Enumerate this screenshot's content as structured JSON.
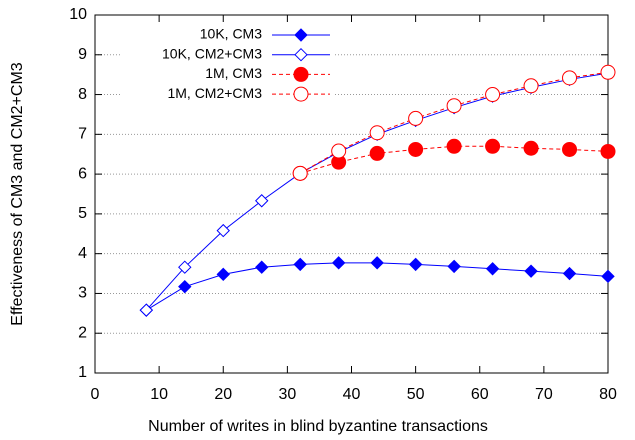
{
  "chart_data": {
    "type": "line",
    "x_label": "Number of writes in blind byzantine transactions",
    "y_label": "Effectiveness of CM3 and CM2+CM3",
    "x": [
      8,
      14,
      20,
      26,
      32,
      38,
      44,
      50,
      56,
      62,
      68,
      74,
      80
    ],
    "xlim": [
      0,
      80
    ],
    "xticks": [
      0,
      10,
      20,
      30,
      40,
      50,
      60,
      70,
      80
    ],
    "ylim": [
      1,
      10
    ],
    "yticks": [
      1,
      2,
      3,
      4,
      5,
      6,
      7,
      8,
      9,
      10
    ],
    "grid": true,
    "legend": "top",
    "series": [
      {
        "name": "10K, CM3",
        "color": "#0000ff",
        "marker": "diamond",
        "filled": true,
        "dashed": false,
        "values": [
          2.58,
          3.17,
          3.48,
          3.66,
          3.73,
          3.77,
          3.77,
          3.73,
          3.68,
          3.62,
          3.56,
          3.5,
          3.43
        ]
      },
      {
        "name": "10K, CM2+CM3",
        "color": "#0000ff",
        "marker": "diamond",
        "filled": false,
        "dashed": false,
        "values": [
          2.58,
          3.66,
          4.58,
          5.33,
          6.02,
          6.55,
          7.0,
          7.35,
          7.67,
          7.96,
          8.18,
          8.38,
          8.54
        ]
      },
      {
        "name": "1M, CM3",
        "color": "#ff0000",
        "marker": "circle",
        "filled": true,
        "dashed": true,
        "values": [
          null,
          null,
          null,
          null,
          6.02,
          6.3,
          6.52,
          6.62,
          6.7,
          6.7,
          6.65,
          6.62,
          6.57
        ]
      },
      {
        "name": "1M, CM2+CM3",
        "color": "#ff0000",
        "marker": "circle",
        "filled": false,
        "dashed": true,
        "values": [
          null,
          null,
          null,
          null,
          6.02,
          6.58,
          7.04,
          7.4,
          7.72,
          8.0,
          8.22,
          8.42,
          8.56
        ]
      }
    ]
  }
}
